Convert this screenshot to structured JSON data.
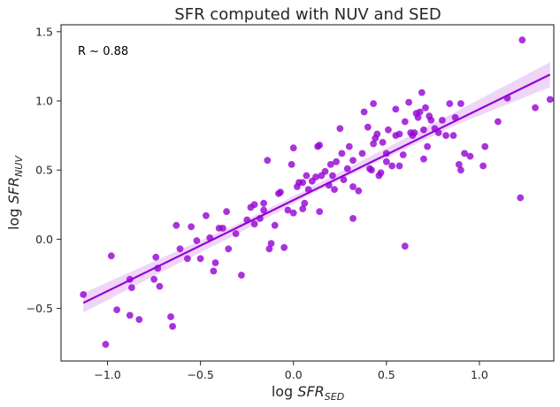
{
  "chart_data": {
    "type": "scatter",
    "title": "SFR computed with NUV and SED",
    "xlabel": {
      "prefix": "log ",
      "main": "SFR",
      "sub": "SED"
    },
    "ylabel": {
      "prefix": "log ",
      "main": "SFR",
      "sub": "NUV"
    },
    "xlim": [
      -1.25,
      1.4
    ],
    "ylim": [
      -0.88,
      1.55
    ],
    "xticks": [
      -1.0,
      -0.5,
      0.0,
      0.5,
      1.0
    ],
    "xtick_labels": [
      "−1.0",
      "−0.5",
      "0.0",
      "0.5",
      "1.0"
    ],
    "yticks": [
      -0.5,
      0.0,
      0.5,
      1.0,
      1.5
    ],
    "ytick_labels": [
      "−0.5",
      "0.0",
      "0.5",
      "1.0",
      "1.5"
    ],
    "annotation": "R ~ 0.88",
    "grid": false,
    "point_color": "#9400d3",
    "fit_line": {
      "x": [
        -1.13,
        1.38
      ],
      "y": [
        -0.46,
        1.19
      ]
    },
    "confidence_band": {
      "x": [
        -1.13,
        -0.7,
        -0.3,
        0.1,
        0.5,
        0.9,
        1.38
      ],
      "lower": [
        -0.53,
        -0.23,
        0.04,
        0.33,
        0.59,
        0.84,
        1.1
      ],
      "upper": [
        -0.39,
        -0.13,
        0.11,
        0.38,
        0.66,
        0.94,
        1.28
      ]
    },
    "points": {
      "x": [
        -1.13,
        -0.98,
        -1.01,
        -0.95,
        -0.88,
        -0.87,
        -0.83,
        -0.88,
        -0.75,
        -0.73,
        -0.72,
        -0.74,
        -0.66,
        -0.65,
        -0.63,
        -0.61,
        -0.57,
        -0.55,
        -0.52,
        -0.5,
        -0.47,
        -0.45,
        -0.43,
        -0.42,
        -0.4,
        -0.38,
        -0.36,
        -0.35,
        -0.31,
        -0.28,
        -0.25,
        -0.23,
        -0.21,
        -0.18,
        -0.16,
        -0.16,
        -0.14,
        -0.13,
        -0.1,
        -0.08,
        -0.07,
        -0.05,
        -0.03,
        -0.01,
        0.0,
        0.0,
        0.02,
        0.03,
        0.05,
        0.05,
        0.06,
        0.07,
        0.08,
        0.1,
        0.12,
        0.13,
        0.14,
        0.15,
        0.17,
        0.19,
        0.2,
        0.21,
        0.22,
        0.23,
        0.25,
        0.27,
        0.29,
        0.3,
        0.32,
        0.32,
        0.35,
        0.37,
        0.38,
        0.4,
        0.41,
        0.42,
        0.43,
        0.44,
        0.45,
        0.46,
        0.47,
        0.48,
        0.5,
        0.5,
        0.51,
        0.53,
        0.55,
        0.55,
        0.57,
        0.57,
        0.59,
        0.6,
        0.62,
        0.63,
        0.64,
        0.65,
        0.66,
        0.67,
        0.68,
        0.69,
        0.7,
        0.7,
        0.71,
        0.72,
        0.73,
        0.74,
        0.76,
        0.78,
        0.8,
        0.82,
        0.84,
        0.86,
        0.87,
        0.89,
        0.9,
        0.9,
        0.92,
        0.95,
        1.02,
        1.03,
        1.1,
        1.15,
        1.22,
        1.23,
        1.3,
        1.38,
        0.14,
        0.32,
        -0.21,
        0.26,
        0.43,
        0.6,
        -0.12
      ],
      "y": [
        -0.4,
        -0.12,
        -0.76,
        -0.51,
        -0.55,
        -0.35,
        -0.58,
        -0.29,
        -0.29,
        -0.21,
        -0.34,
        -0.13,
        -0.56,
        -0.63,
        0.1,
        -0.07,
        -0.14,
        0.09,
        -0.01,
        -0.14,
        0.17,
        0.01,
        -0.23,
        -0.17,
        0.08,
        0.08,
        0.2,
        -0.07,
        0.04,
        -0.26,
        0.14,
        0.23,
        0.25,
        0.15,
        0.26,
        0.21,
        0.57,
        -0.07,
        0.1,
        0.33,
        0.34,
        -0.06,
        0.21,
        0.54,
        0.66,
        0.19,
        0.38,
        0.41,
        0.22,
        0.41,
        0.26,
        0.46,
        0.36,
        0.42,
        0.45,
        0.67,
        0.2,
        0.46,
        0.49,
        0.39,
        0.54,
        0.46,
        0.36,
        0.56,
        0.8,
        0.43,
        0.51,
        0.67,
        0.38,
        0.57,
        0.35,
        0.62,
        0.92,
        0.81,
        0.51,
        0.5,
        0.69,
        0.73,
        0.76,
        0.46,
        0.48,
        0.7,
        0.56,
        0.62,
        0.79,
        0.53,
        0.75,
        0.94,
        0.76,
        0.53,
        0.61,
        0.85,
        0.99,
        0.77,
        0.75,
        0.77,
        0.91,
        0.88,
        0.92,
        1.06,
        0.79,
        0.58,
        0.95,
        0.67,
        0.89,
        0.86,
        0.8,
        0.77,
        0.86,
        0.75,
        0.98,
        0.75,
        0.88,
        0.54,
        0.98,
        0.5,
        0.62,
        0.6,
        0.53,
        0.67,
        0.85,
        1.02,
        0.3,
        1.44,
        0.95,
        1.01,
        0.68,
        0.15,
        0.11,
        0.62,
        0.98,
        -0.05,
        -0.03
      ]
    }
  }
}
